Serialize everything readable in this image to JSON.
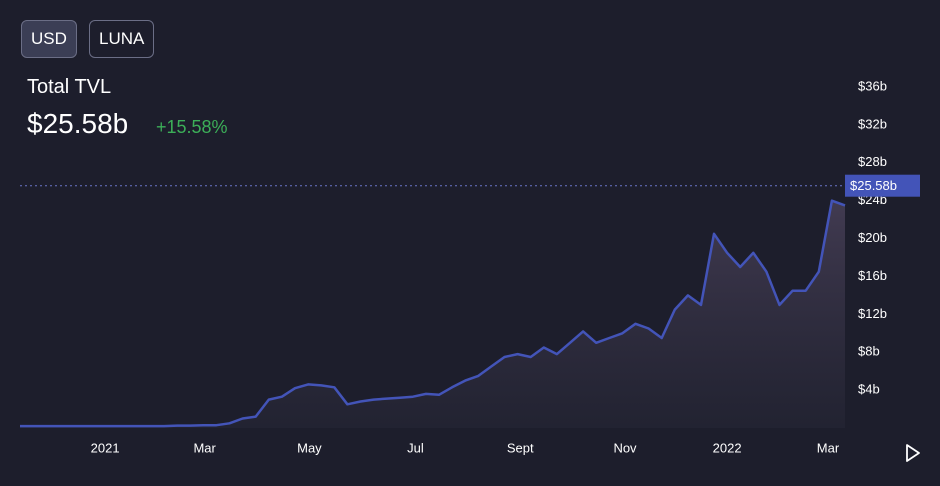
{
  "header": {
    "title": "Total TVL",
    "change": "+15.58%"
  },
  "buttons": [
    "USD",
    "LUNA"
  ],
  "chart_data": {
    "type": "area",
    "color": "#4354b8",
    "values": [
      0.2,
      0.2,
      0.2,
      0.2,
      0.2,
      0.2,
      0.2,
      0.2,
      0.2,
      0.2,
      0.2,
      0.2,
      0.25,
      0.25,
      0.3,
      0.3,
      0.5,
      1.0,
      1.2,
      3.0,
      3.3,
      4.2,
      4.6,
      4.5,
      4.3,
      2.5,
      2.8,
      3.0,
      3.1,
      3.2,
      3.3,
      3.6,
      3.5,
      4.3,
      5.0,
      5.5,
      6.5,
      7.5,
      7.8,
      7.5,
      8.5,
      7.8,
      9.0,
      10.2,
      9.0,
      9.5,
      10.0,
      11.0,
      10.5,
      9.5,
      12.5,
      14.0,
      13.0,
      20.5,
      18.5,
      17.0,
      18.5,
      16.5,
      13.0,
      14.5,
      14.5,
      16.5,
      24.0,
      23.5
    ],
    "ylim": [
      0,
      36
    ],
    "yticks": [
      {
        "value": 4,
        "label": "$4b"
      },
      {
        "value": 8,
        "label": "$8b"
      },
      {
        "value": 12,
        "label": "$12b"
      },
      {
        "value": 16,
        "label": "$16b"
      },
      {
        "value": 20,
        "label": "$20b"
      },
      {
        "value": 24,
        "label": "$24b"
      },
      {
        "value": 28,
        "label": "$28b"
      },
      {
        "value": 32,
        "label": "$32b"
      },
      {
        "value": 36,
        "label": "$36b"
      }
    ],
    "xticks": [
      {
        "value": 6.5,
        "label": "2021"
      },
      {
        "value": 14.1,
        "label": "Mar"
      },
      {
        "value": 22.1,
        "label": "May"
      },
      {
        "value": 30.2,
        "label": "Jul"
      },
      {
        "value": 38.2,
        "label": "Sept"
      },
      {
        "value": 46.2,
        "label": "Nov"
      },
      {
        "value": 54.0,
        "label": "2022"
      },
      {
        "value": 61.7,
        "label": "Mar"
      }
    ],
    "current": {
      "value": 25.58,
      "label": "$25.58b"
    }
  }
}
